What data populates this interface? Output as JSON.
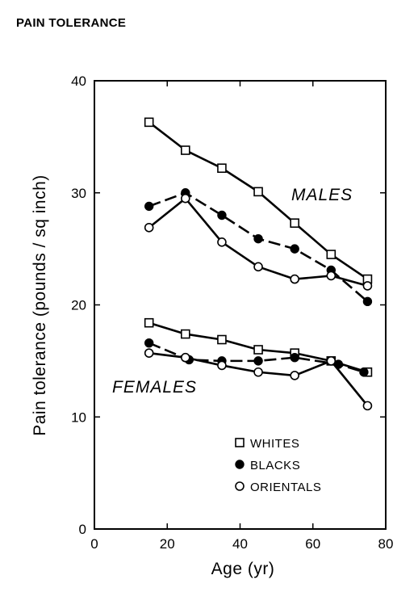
{
  "page_title": "PAIN TOLERANCE",
  "chart_data": {
    "type": "line",
    "title": "",
    "xlabel": "Age (yr)",
    "ylabel": "Pain tolerance (pounds / sq inch)",
    "xlim": [
      0,
      80
    ],
    "ylim": [
      0,
      40
    ],
    "x_ticks": [
      0,
      20,
      40,
      60,
      80
    ],
    "y_ticks": [
      0,
      10,
      20,
      30,
      40
    ],
    "x_tick_labels": [
      "0",
      "20",
      "40",
      "60",
      "80"
    ],
    "y_tick_labels": [
      "0",
      "10",
      "20",
      "30",
      "40"
    ],
    "grid": false,
    "legend_position": "bottom-right",
    "group_labels": {
      "males": "MALES",
      "females": "FEMALES"
    },
    "legend": [
      {
        "key": "whites",
        "label": "WHITES",
        "marker": "open-square"
      },
      {
        "key": "blacks",
        "label": "BLACKS",
        "marker": "filled-circle"
      },
      {
        "key": "orientals",
        "label": "ORIENTALS",
        "marker": "open-circle"
      }
    ],
    "series": [
      {
        "group": "MALES",
        "race": "WHITES",
        "marker": "open-square",
        "style": "solid",
        "x": [
          15,
          25,
          35,
          45,
          55,
          65,
          75
        ],
        "y": [
          36.3,
          33.8,
          32.2,
          30.1,
          27.3,
          24.5,
          22.3
        ]
      },
      {
        "group": "MALES",
        "race": "BLACKS",
        "marker": "filled-circle",
        "style": "dashed",
        "x": [
          15,
          25,
          35,
          45,
          55,
          65,
          75
        ],
        "y": [
          28.8,
          30.0,
          28.0,
          25.9,
          25.0,
          23.1,
          20.3
        ]
      },
      {
        "group": "MALES",
        "race": "ORIENTALS",
        "marker": "open-circle",
        "style": "solid",
        "x": [
          15,
          25,
          35,
          45,
          55,
          65,
          75
        ],
        "y": [
          26.9,
          29.5,
          25.6,
          23.4,
          22.3,
          22.6,
          21.7
        ]
      },
      {
        "group": "FEMALES",
        "race": "WHITES",
        "marker": "open-square",
        "style": "solid",
        "x": [
          15,
          25,
          35,
          45,
          55,
          65,
          75
        ],
        "y": [
          18.4,
          17.4,
          16.9,
          16.0,
          15.7,
          15.0,
          14.0
        ]
      },
      {
        "group": "FEMALES",
        "race": "BLACKS",
        "marker": "filled-circle",
        "style": "dashed",
        "x": [
          15,
          26,
          35,
          45,
          55,
          67,
          74
        ],
        "y": [
          16.6,
          15.1,
          15.0,
          15.0,
          15.3,
          14.7,
          14.0
        ]
      },
      {
        "group": "FEMALES",
        "race": "ORIENTALS",
        "marker": "open-circle",
        "style": "solid",
        "x": [
          15,
          25,
          35,
          45,
          55,
          65,
          75
        ],
        "y": [
          15.7,
          15.3,
          14.6,
          14.0,
          13.7,
          15.0,
          11.0
        ]
      }
    ]
  }
}
